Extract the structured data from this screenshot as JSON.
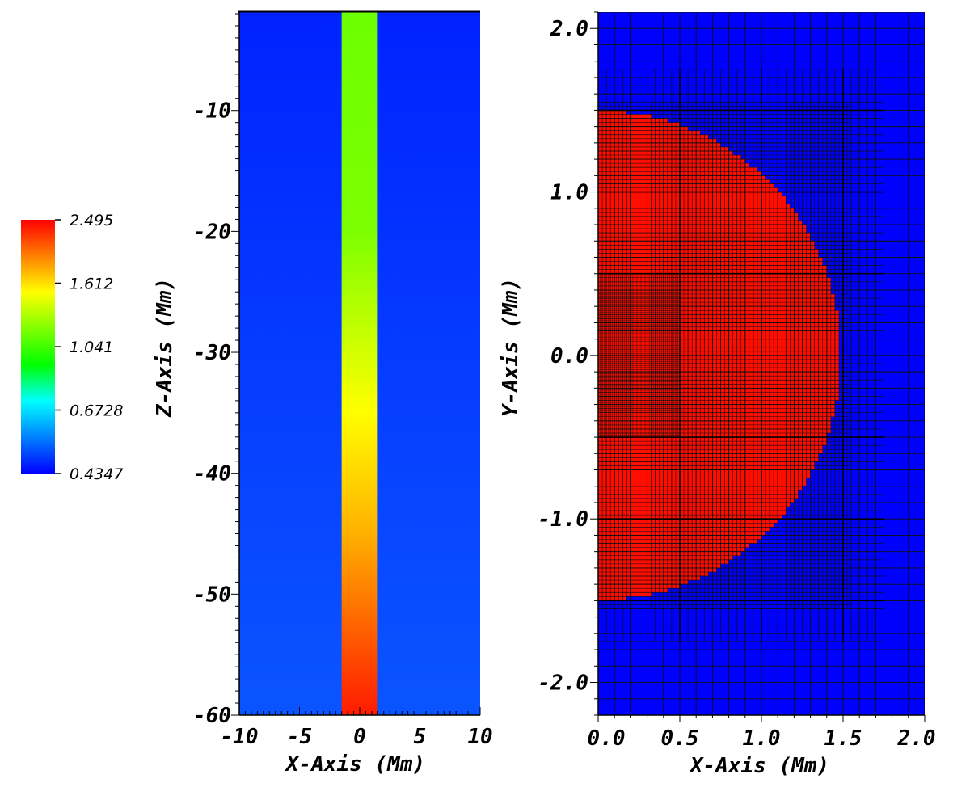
{
  "chart_data": [
    {
      "type": "heatmap",
      "panel": "left",
      "xlabel": "X-Axis (Mm)",
      "ylabel": "Z-Axis (Mm)",
      "xlim": [
        -10,
        10
      ],
      "ylim": [
        -60,
        -1.8
      ],
      "xticks": [
        -10,
        -5,
        0,
        5,
        10
      ],
      "xtick_labels": [
        "-10",
        "-5",
        "0",
        "5",
        "10"
      ],
      "yticks": [
        -10,
        -20,
        -30,
        -40,
        -50,
        -60
      ],
      "ytick_labels": [
        "-10",
        "-20",
        "-30",
        "-40",
        "-50",
        "-60"
      ],
      "tube": {
        "x_range": [
          -1.5,
          1.5
        ],
        "color_stops": [
          {
            "z": -1.8,
            "color": "#6cff00"
          },
          {
            "z": -20,
            "color": "#7cff00"
          },
          {
            "z": -35,
            "color": "#ffff00"
          },
          {
            "z": -45,
            "color": "#ffb000"
          },
          {
            "z": -60,
            "color": "#ff1a00"
          }
        ]
      },
      "background_stops": [
        {
          "z": -1.8,
          "color": "#0022ff"
        },
        {
          "z": -60,
          "color": "#0a55ff"
        }
      ]
    },
    {
      "type": "heatmap",
      "panel": "right",
      "xlabel": "X-Axis (Mm)",
      "ylabel": "Y-Axis (Mm)",
      "xlim": [
        0,
        2.0
      ],
      "ylim": [
        -2.2,
        2.1
      ],
      "xticks": [
        0,
        0.5,
        1.0,
        1.5,
        2.0
      ],
      "xtick_labels": [
        "0.0",
        "0.5",
        "1.0",
        "1.5",
        "2.0"
      ],
      "yticks": [
        2.0,
        1.0,
        0.0,
        -1.0,
        -2.0
      ],
      "ytick_labels": [
        "2.0",
        "1.0",
        "0.0",
        "-1.0",
        "-2.0"
      ],
      "disc": {
        "center": [
          0,
          0
        ],
        "radius": 1.5,
        "color": "#ff0d00"
      },
      "background_color": "#0000ff",
      "grid_levels": [
        0.1,
        0.05,
        0.025,
        0.0125
      ],
      "grid_color": "#101010"
    }
  ],
  "colorbar": {
    "labels": [
      "2.495",
      "1.612",
      "1.041",
      "0.6728",
      "0.4347"
    ],
    "values": [
      2.495,
      1.612,
      1.041,
      0.6728,
      0.4347
    ],
    "gradient": [
      "#ff0000",
      "#ff8000",
      "#ffff00",
      "#80ff00",
      "#00ff00",
      "#00ffff",
      "#0080ff",
      "#0000ff"
    ]
  }
}
